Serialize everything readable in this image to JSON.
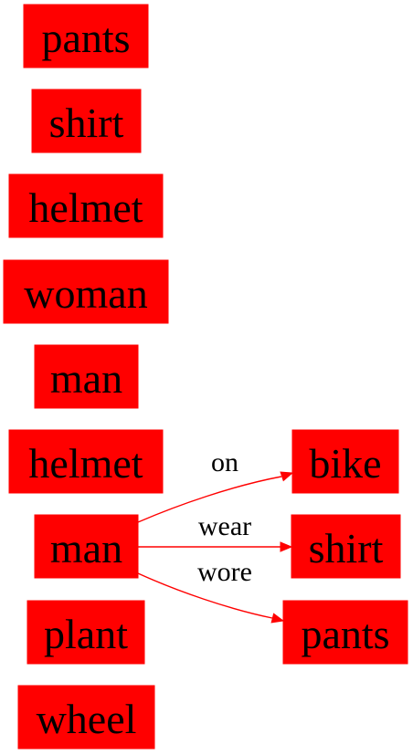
{
  "colors": {
    "node_fill": "#ff0000",
    "edge": "#ff0000",
    "text": "#000000",
    "background": "#ffffff"
  },
  "nodes": [
    {
      "id": "pants-0",
      "label": "pants"
    },
    {
      "id": "shirt-0",
      "label": "shirt"
    },
    {
      "id": "helmet-0",
      "label": "helmet"
    },
    {
      "id": "woman-0",
      "label": "woman"
    },
    {
      "id": "man-0",
      "label": "man"
    },
    {
      "id": "helmet-1",
      "label": "helmet"
    },
    {
      "id": "man-1",
      "label": "man"
    },
    {
      "id": "plant-0",
      "label": "plant"
    },
    {
      "id": "wheel-0",
      "label": "wheel"
    },
    {
      "id": "bike-0",
      "label": "bike"
    },
    {
      "id": "shirt-1",
      "label": "shirt"
    },
    {
      "id": "pants-1",
      "label": "pants"
    }
  ],
  "edges": [
    {
      "from": "man-1",
      "to": "bike-0",
      "label": "on"
    },
    {
      "from": "man-1",
      "to": "shirt-1",
      "label": "wear"
    },
    {
      "from": "man-1",
      "to": "pants-1",
      "label": "wore"
    }
  ]
}
